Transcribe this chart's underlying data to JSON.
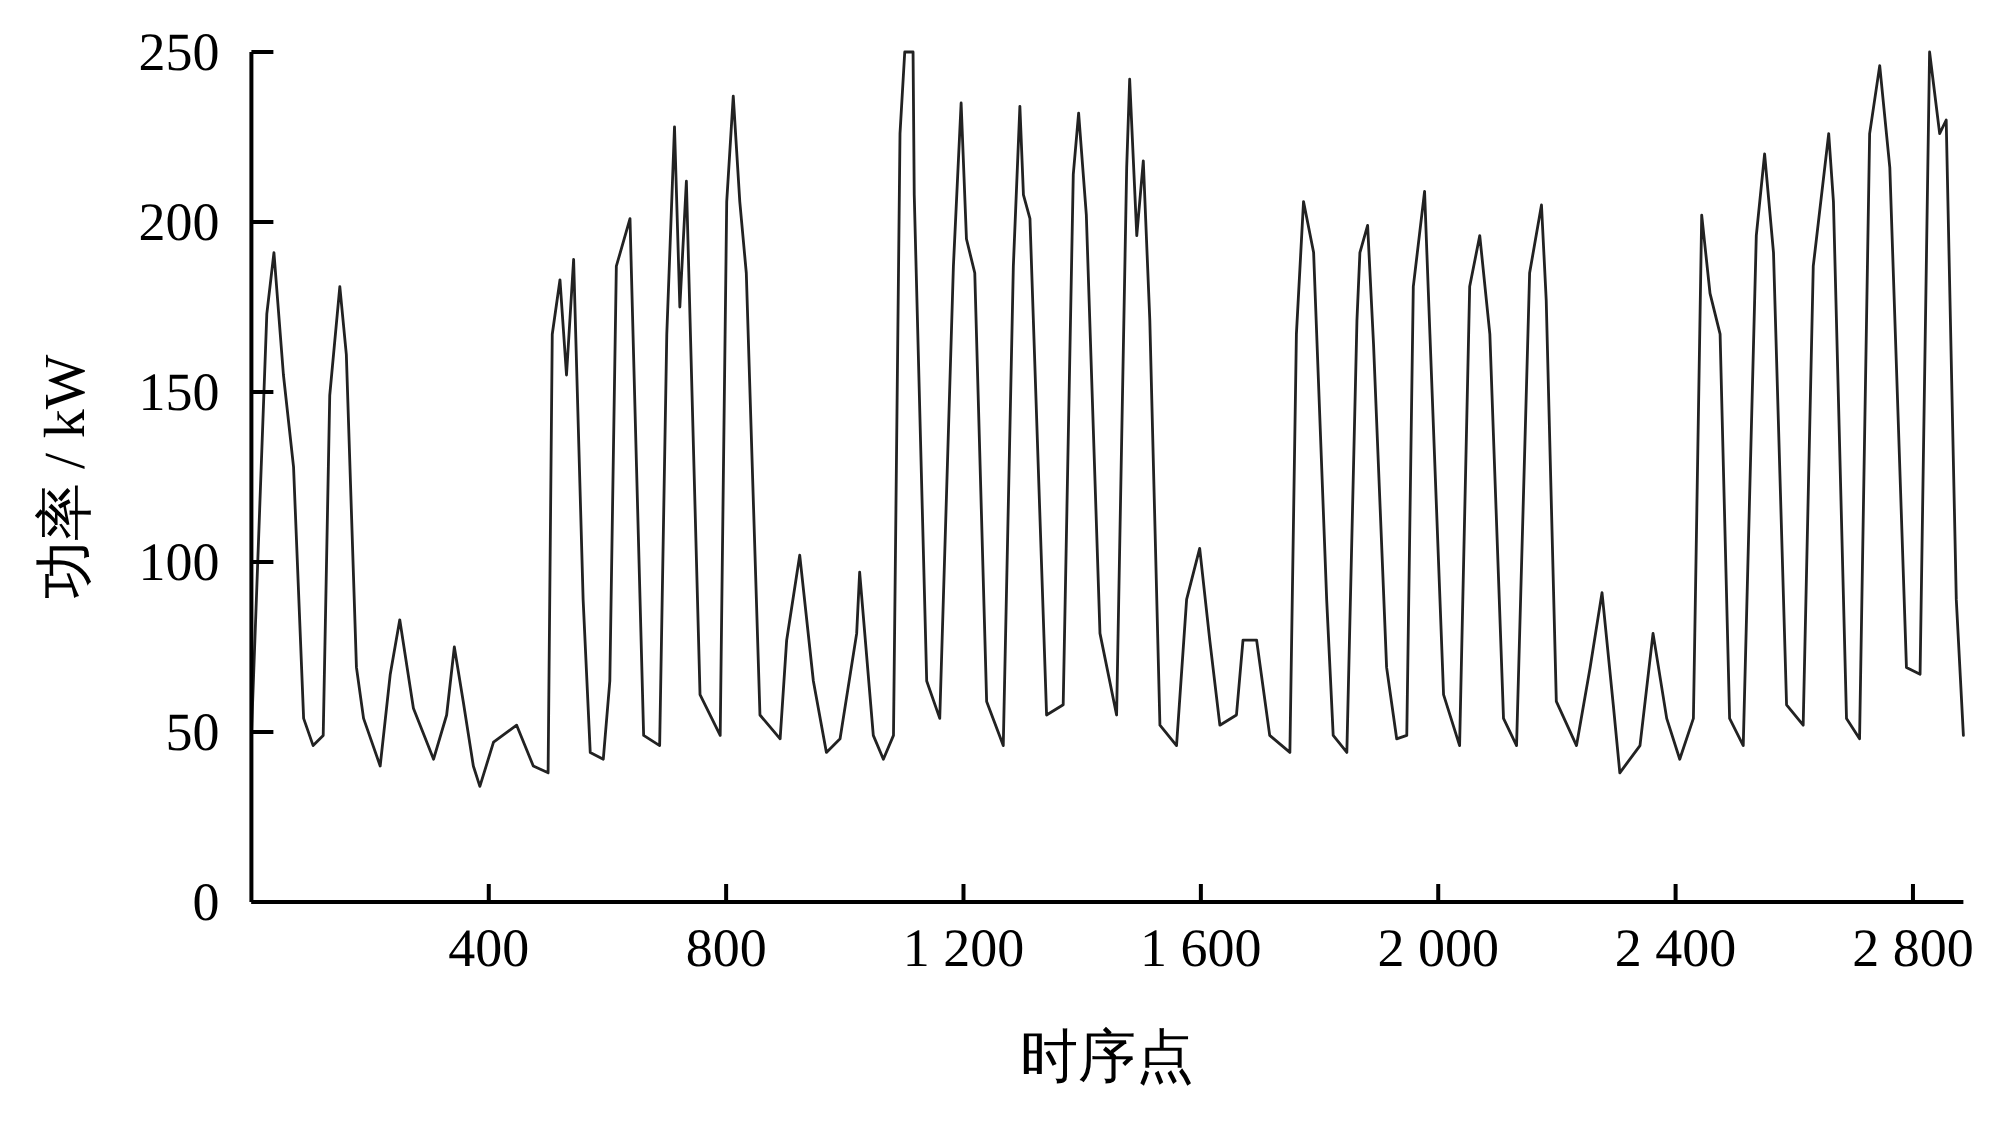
{
  "chart_data": {
    "type": "line",
    "xlabel": "时序点",
    "ylabel": "功率 / kW",
    "xlim": [
      0,
      2885
    ],
    "ylim": [
      0,
      250
    ],
    "xticks": [
      {
        "value": 400,
        "label": "400"
      },
      {
        "value": 800,
        "label": "800"
      },
      {
        "value": 1200,
        "label": "1 200"
      },
      {
        "value": 1600,
        "label": "1 600"
      },
      {
        "value": 2000,
        "label": "2 000"
      },
      {
        "value": 2400,
        "label": "2 400"
      },
      {
        "value": 2800,
        "label": "2 800"
      }
    ],
    "yticks": [
      0,
      50,
      100,
      150,
      200,
      250
    ],
    "marker": "none",
    "line_style": "solid",
    "x": [
      0,
      26,
      38,
      54,
      71,
      88,
      104,
      121,
      132,
      149,
      160,
      177,
      189,
      217,
      234,
      250,
      273,
      307,
      329,
      342,
      357,
      374,
      385,
      408,
      447,
      475,
      500,
      507,
      520,
      531,
      543,
      559,
      571,
      593,
      604,
      615,
      638,
      649,
      661,
      688,
      700,
      713,
      722,
      733,
      756,
      790,
      801,
      812,
      823,
      834,
      857,
      891,
      902,
      924,
      947,
      969,
      992,
      1020,
      1025,
      1048,
      1065,
      1082,
      1093,
      1101,
      1115,
      1117,
      1138,
      1160,
      1183,
      1196,
      1205,
      1219,
      1239,
      1267,
      1284,
      1295,
      1301,
      1312,
      1340,
      1368,
      1385,
      1394,
      1407,
      1430,
      1458,
      1475,
      1480,
      1492,
      1503,
      1514,
      1531,
      1559,
      1576,
      1598,
      1615,
      1632,
      1660,
      1671,
      1694,
      1716,
      1750,
      1761,
      1773,
      1790,
      1812,
      1823,
      1846,
      1863,
      1868,
      1881,
      1891,
      1913,
      1930,
      1947,
      1958,
      1977,
      1986,
      2009,
      2036,
      2053,
      2070,
      2087,
      2110,
      2132,
      2154,
      2174,
      2182,
      2199,
      2233,
      2256,
      2276,
      2295,
      2306,
      2340,
      2362,
      2385,
      2407,
      2430,
      2444,
      2458,
      2475,
      2491,
      2514,
      2536,
      2550,
      2565,
      2587,
      2615,
      2632,
      2658,
      2666,
      2688,
      2710,
      2727,
      2744,
      2761,
      2789,
      2812,
      2828,
      2845,
      2856,
      2873,
      2885
    ],
    "series": [
      {
        "color": "#222222",
        "values": [
          49,
          173,
          191,
          155,
          128,
          54,
          46,
          49,
          149,
          181,
          161,
          69,
          54,
          40,
          67,
          83,
          57,
          42,
          55,
          75,
          59,
          40,
          34,
          47,
          52,
          40,
          38,
          167,
          183,
          155,
          189,
          89,
          44,
          42,
          65,
          187,
          201,
          128,
          49,
          46,
          167,
          228,
          175,
          212,
          61,
          49,
          206,
          237,
          206,
          185,
          55,
          48,
          77,
          102,
          65,
          44,
          48,
          79,
          97,
          49,
          42,
          49,
          226,
          250,
          250,
          208,
          65,
          54,
          187,
          235,
          195,
          185,
          59,
          46,
          187,
          234,
          208,
          201,
          55,
          58,
          214,
          232,
          202,
          79,
          55,
          216,
          242,
          196,
          218,
          171,
          52,
          46,
          89,
          104,
          77,
          52,
          55,
          77,
          77,
          49,
          44,
          167,
          206,
          191,
          89,
          49,
          44,
          171,
          191,
          199,
          164,
          69,
          48,
          49,
          181,
          209,
          167,
          61,
          46,
          181,
          196,
          167,
          54,
          46,
          185,
          205,
          177,
          59,
          46,
          69,
          91,
          58,
          38,
          46,
          79,
          54,
          42,
          54,
          202,
          179,
          167,
          54,
          46,
          196,
          220,
          191,
          58,
          52,
          187,
          226,
          206,
          54,
          48,
          226,
          246,
          216,
          69,
          67,
          250,
          226,
          230,
          89,
          49
        ]
      }
    ]
  }
}
